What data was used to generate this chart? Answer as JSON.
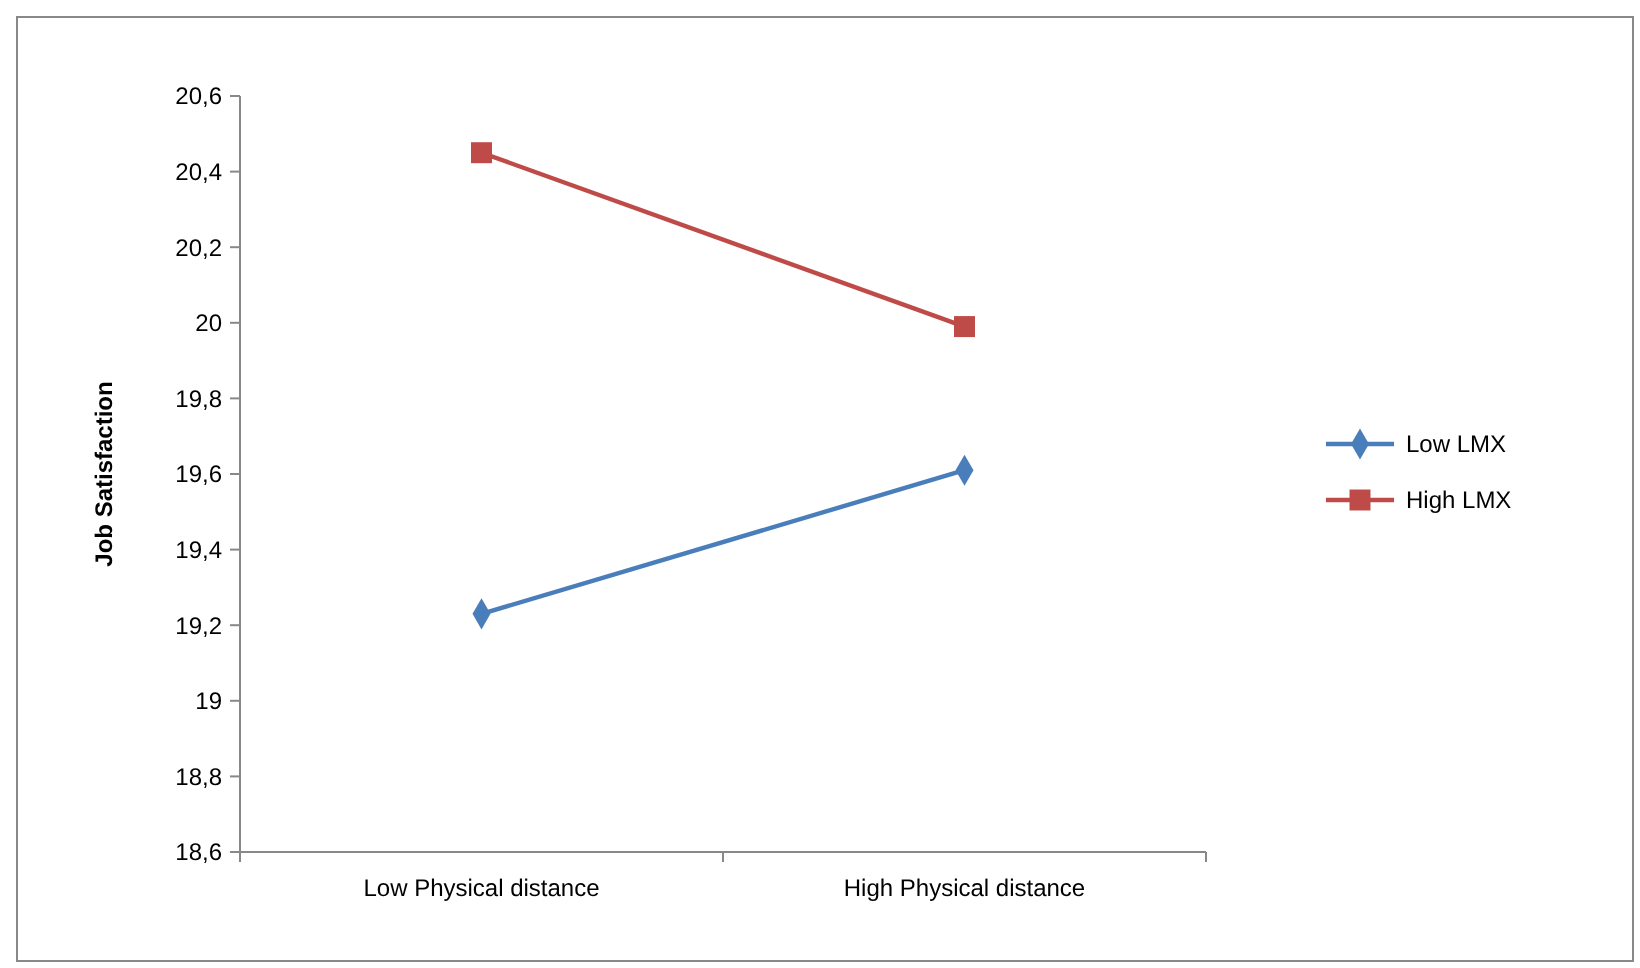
{
  "chart_data": {
    "type": "line",
    "ylabel": "Job Satisfaction",
    "categories": [
      "Low Physical distance",
      "High Physical distance"
    ],
    "series": [
      {
        "name": "Low LMX",
        "color": "#4a7ebb",
        "marker": "diamond",
        "values": [
          19.23,
          19.61
        ]
      },
      {
        "name": "High LMX",
        "color": "#be4b48",
        "marker": "square",
        "values": [
          20.45,
          19.99
        ]
      }
    ],
    "ylim": [
      18.6,
      20.6
    ],
    "yticks": [
      {
        "value": 18.6,
        "label": "18,6"
      },
      {
        "value": 18.8,
        "label": "18,8"
      },
      19,
      {
        "value": 19.2,
        "label": "19,2"
      },
      {
        "value": 19.4,
        "label": "19,4"
      },
      {
        "value": 19.6,
        "label": "19,6"
      },
      {
        "value": 19.8,
        "label": "19,8"
      },
      20,
      {
        "value": 20.2,
        "label": "20,2"
      },
      {
        "value": 20.4,
        "label": "20,4"
      },
      {
        "value": 20.6,
        "label": "20,6"
      }
    ],
    "legend": "right",
    "grid": false
  }
}
